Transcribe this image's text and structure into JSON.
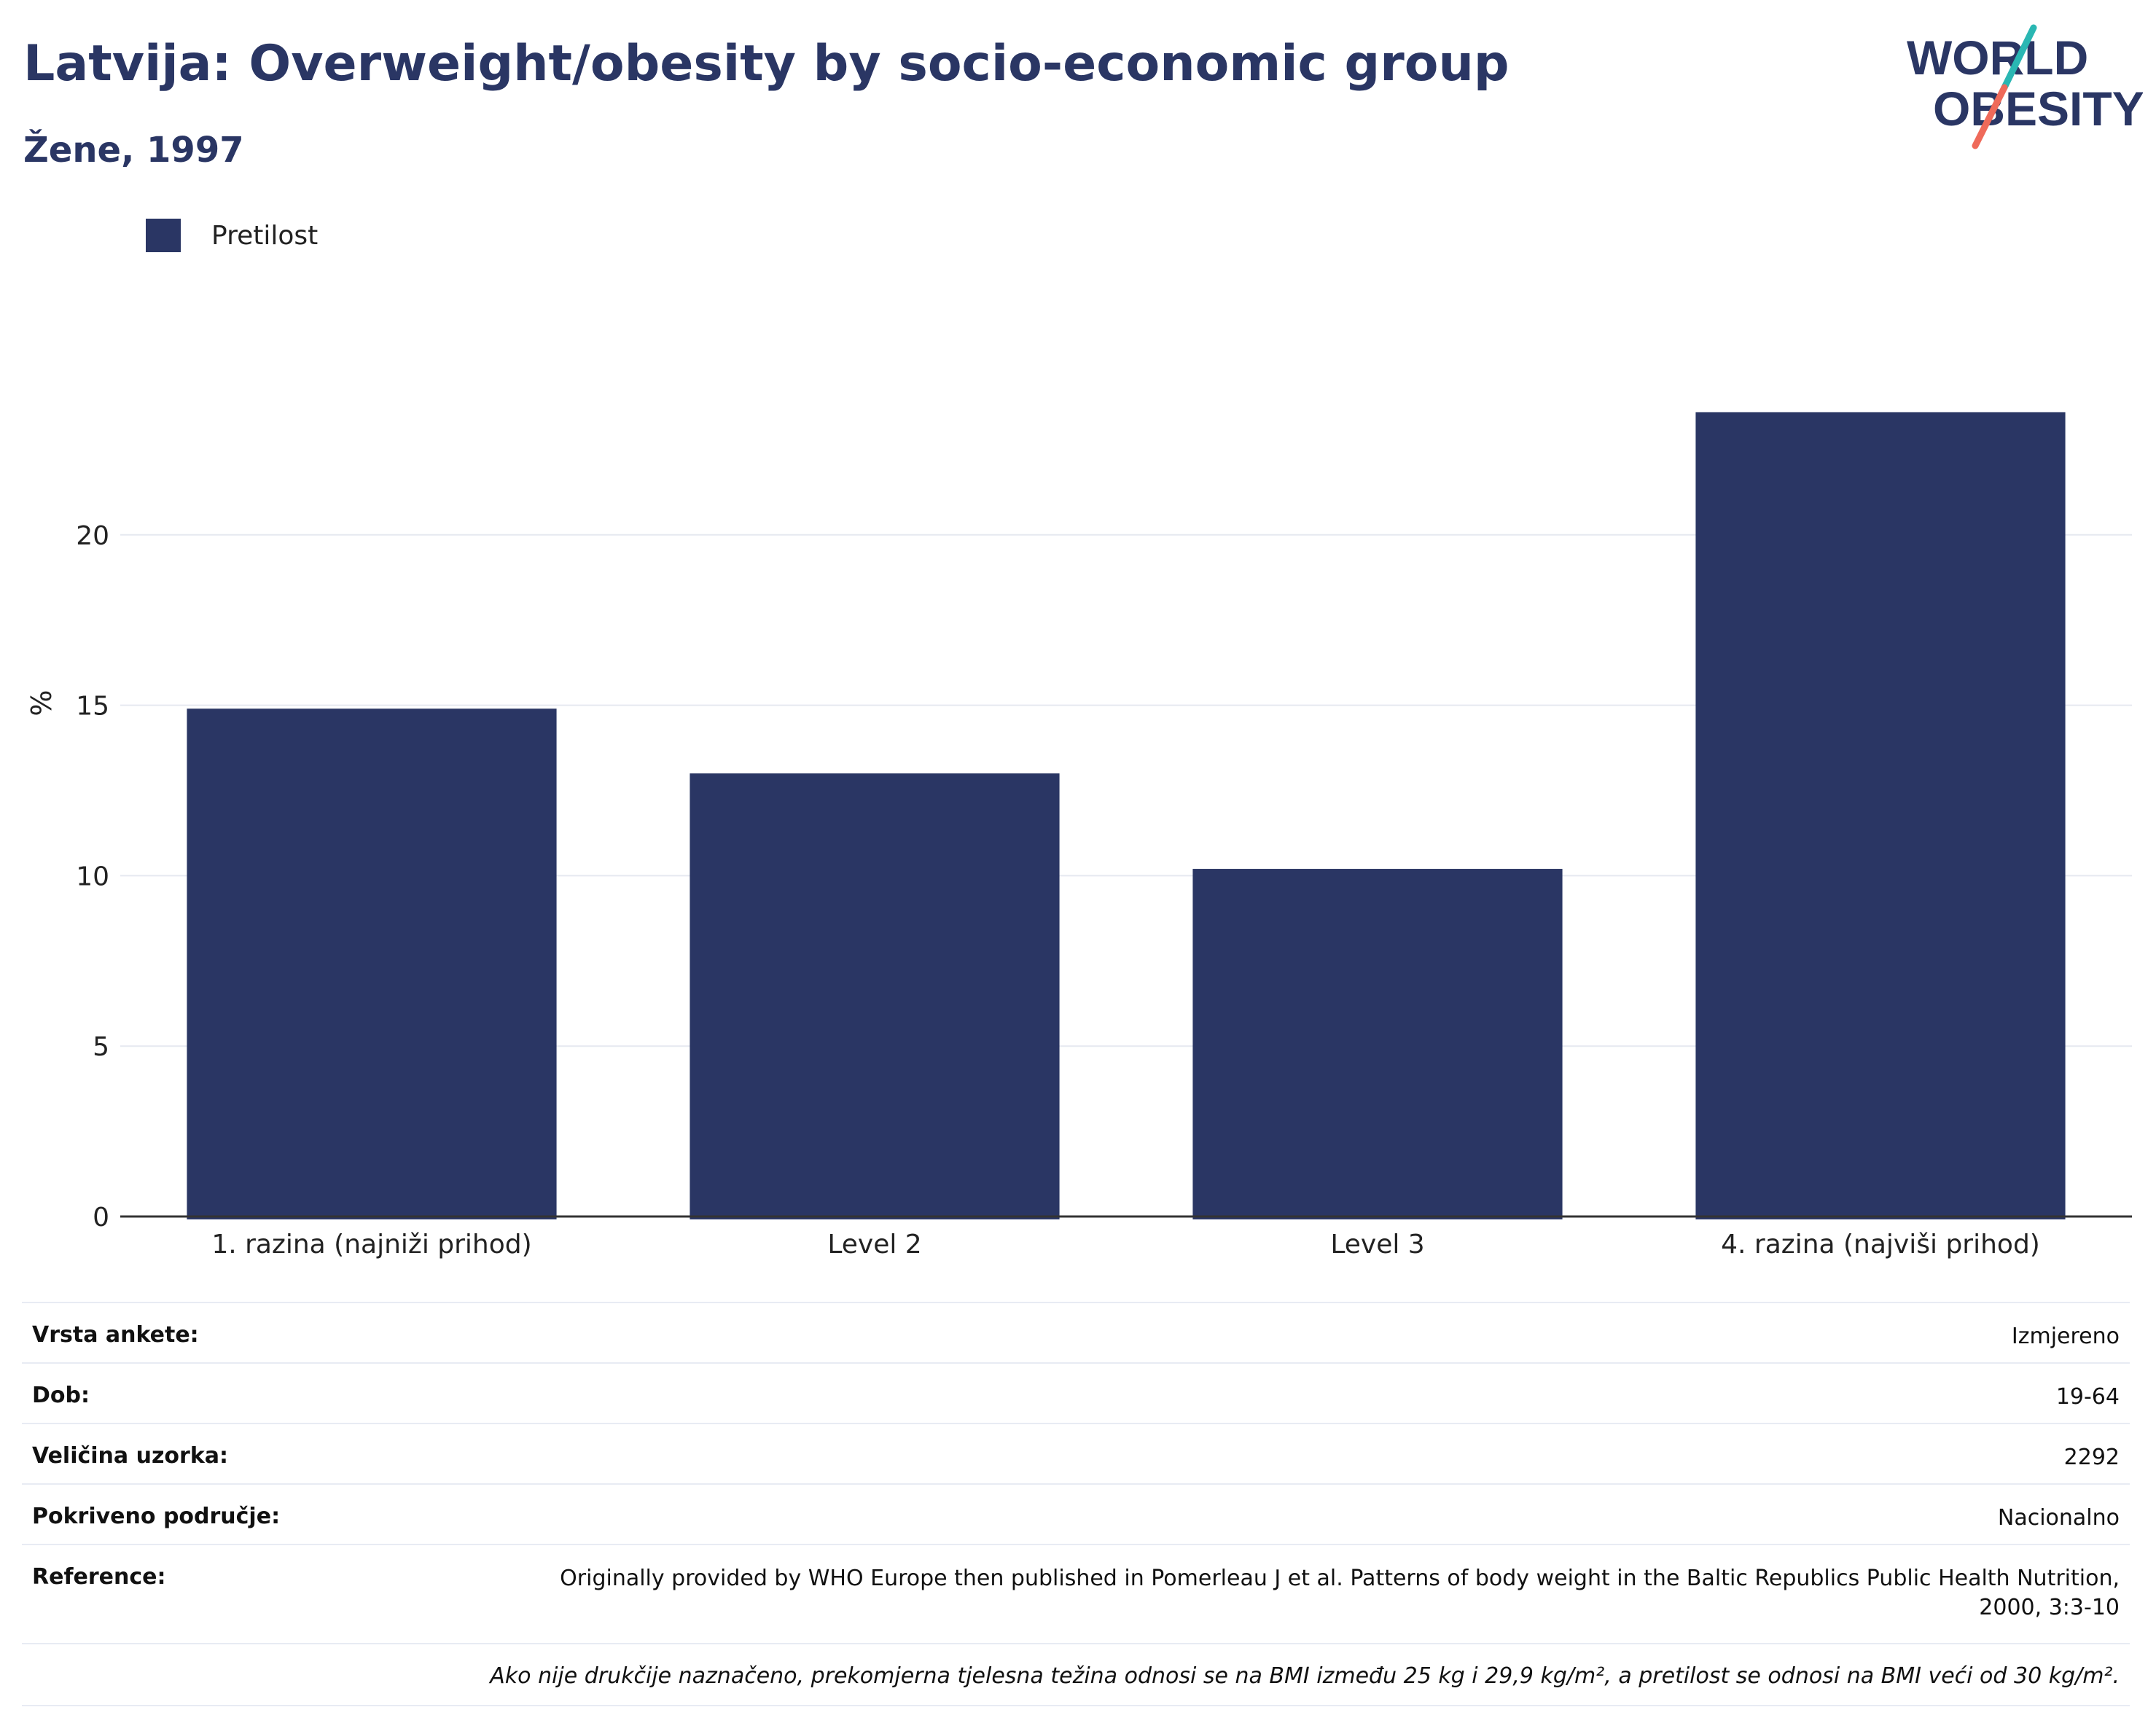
{
  "header": {
    "title": "Latvija: Overweight/obesity by socio-economic group",
    "subtitle": "Žene, 1997"
  },
  "logo": {
    "line1": "WORLD",
    "line2": "OBESITY",
    "colors": {
      "text": "#2a3664",
      "slash_teal": "#2ab7b3",
      "slash_coral": "#ef6a5a"
    }
  },
  "legend": {
    "items": [
      {
        "label": "Pretilost",
        "color": "#2a3664"
      }
    ]
  },
  "chart_data": {
    "type": "bar",
    "categories": [
      "1. razina (najniži prihod)",
      "Level 2",
      "Level 3",
      "4. razina (najviši prihod)"
    ],
    "series": [
      {
        "name": "Pretilost",
        "values": [
          14.9,
          13.0,
          10.2,
          23.6
        ],
        "color": "#2a3664"
      }
    ],
    "ylabel": "%",
    "ylim": [
      0,
      25
    ],
    "yticks": [
      0,
      5,
      10,
      15,
      20
    ],
    "grid": true,
    "legend_position": "top-left"
  },
  "info": {
    "rows": [
      {
        "key": "Vrsta ankete:",
        "value": "Izmjereno"
      },
      {
        "key": "Dob:",
        "value": "19-64"
      },
      {
        "key": "Veličina uzorka:",
        "value": "2292"
      },
      {
        "key": "Pokriveno područje:",
        "value": "Nacionalno"
      }
    ],
    "reference": {
      "key": "Reference:",
      "value": "Originally provided by WHO Europe then published in Pomerleau J et al. Patterns of body weight in the Baltic Republics Public Health Nutrition, 2000, 3:3-10"
    },
    "note": "Ako nije drukčije naznačeno, prekomjerna tjelesna težina odnosi se na BMI između 25 kg i 29,9 kg/m², a pretilost se odnosi na BMI veći od 30 kg/m²."
  }
}
